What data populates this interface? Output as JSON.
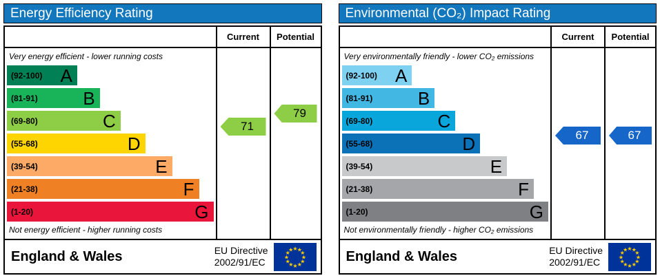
{
  "chart_data": [
    {
      "type": "bar",
      "title": "Energy Efficiency Rating",
      "categories": [
        "A (92-100)",
        "B (81-91)",
        "C (69-80)",
        "D (55-68)",
        "E (39-54)",
        "F (21-38)",
        "G (1-20)"
      ],
      "series": [
        {
          "name": "Current",
          "values": [
            71
          ]
        },
        {
          "name": "Potential",
          "values": [
            79
          ]
        }
      ],
      "current_rating": 71,
      "current_band": "C",
      "potential_rating": 79,
      "potential_band": "C",
      "ylim": [
        1,
        100
      ],
      "top_caption": "Very energy efficient - lower running costs",
      "bottom_caption": "Not energy efficient - higher running costs"
    },
    {
      "type": "bar",
      "title": "Environmental (CO₂) Impact Rating",
      "categories": [
        "A (92-100)",
        "B (81-91)",
        "C (69-80)",
        "D (55-68)",
        "E (39-54)",
        "F (21-38)",
        "G (1-20)"
      ],
      "series": [
        {
          "name": "Current",
          "values": [
            67
          ]
        },
        {
          "name": "Potential",
          "values": [
            67
          ]
        }
      ],
      "current_rating": 67,
      "current_band": "D",
      "potential_rating": 67,
      "potential_band": "D",
      "ylim": [
        1,
        100
      ],
      "top_caption": "Very environmentally friendly - lower CO₂ emissions",
      "bottom_caption": "Not environmentally friendly - higher CO₂ emissions"
    }
  ],
  "eu_flag": {
    "background": "#003399",
    "star_color": "#ffcc00",
    "star_count": 12
  },
  "panels": [
    {
      "title": "Energy Efficiency Rating",
      "header_color": "#1377bd",
      "columns": {
        "current": "Current",
        "potential": "Potential"
      },
      "top_caption": "Very energy efficient - lower running costs",
      "bottom_caption": "Not energy efficient - higher running costs",
      "bands": [
        {
          "letter": "A",
          "range": "(92-100)",
          "low": 92,
          "high": 100,
          "color": "#008054",
          "width_pct": 34
        },
        {
          "letter": "B",
          "range": "(81-91)",
          "low": 81,
          "high": 91,
          "color": "#19b459",
          "width_pct": 45
        },
        {
          "letter": "C",
          "range": "(69-80)",
          "low": 69,
          "high": 80,
          "color": "#8dce46",
          "width_pct": 55
        },
        {
          "letter": "D",
          "range": "(55-68)",
          "low": 55,
          "high": 68,
          "color": "#ffd500",
          "width_pct": 67
        },
        {
          "letter": "E",
          "range": "(39-54)",
          "low": 39,
          "high": 54,
          "color": "#fcaa65",
          "width_pct": 80
        },
        {
          "letter": "F",
          "range": "(21-38)",
          "low": 21,
          "high": 38,
          "color": "#ef8023",
          "width_pct": 93
        },
        {
          "letter": "G",
          "range": "(1-20)",
          "low": 1,
          "high": 20,
          "color": "#e9153b",
          "width_pct": 100
        }
      ],
      "current": {
        "value": 71,
        "color": "#8dce46",
        "text_color": "#000000"
      },
      "potential": {
        "value": 79,
        "color": "#8dce46",
        "text_color": "#000000"
      },
      "footer": {
        "region": "England & Wales",
        "directive_line1": "EU Directive",
        "directive_line2": "2002/91/EC"
      }
    },
    {
      "title": "Environmental (CO₂) Impact Rating",
      "header_color": "#1377bd",
      "columns": {
        "current": "Current",
        "potential": "Potential"
      },
      "top_caption": "Very environmentally friendly - lower CO₂ emissions",
      "bottom_caption": "Not environmentally friendly - higher CO₂ emissions",
      "bands": [
        {
          "letter": "A",
          "range": "(92-100)",
          "low": 92,
          "high": 100,
          "color": "#7fd1f2",
          "width_pct": 34
        },
        {
          "letter": "B",
          "range": "(81-91)",
          "low": 81,
          "high": 91,
          "color": "#42b7e4",
          "width_pct": 45
        },
        {
          "letter": "C",
          "range": "(69-80)",
          "low": 69,
          "high": 80,
          "color": "#09a6dc",
          "width_pct": 55
        },
        {
          "letter": "D",
          "range": "(55-68)",
          "low": 55,
          "high": 68,
          "color": "#0b72b8",
          "width_pct": 67
        },
        {
          "letter": "E",
          "range": "(39-54)",
          "low": 39,
          "high": 54,
          "color": "#c8c9cb",
          "width_pct": 80
        },
        {
          "letter": "F",
          "range": "(21-38)",
          "low": 21,
          "high": 38,
          "color": "#a4a6a9",
          "width_pct": 93
        },
        {
          "letter": "G",
          "range": "(1-20)",
          "low": 1,
          "high": 20,
          "color": "#7e8083",
          "width_pct": 100
        }
      ],
      "current": {
        "value": 67,
        "color": "#1665c8",
        "text_color": "#ffffff"
      },
      "potential": {
        "value": 67,
        "color": "#1665c8",
        "text_color": "#ffffff"
      },
      "footer": {
        "region": "England & Wales",
        "directive_line1": "EU Directive",
        "directive_line2": "2002/91/EC"
      }
    }
  ]
}
